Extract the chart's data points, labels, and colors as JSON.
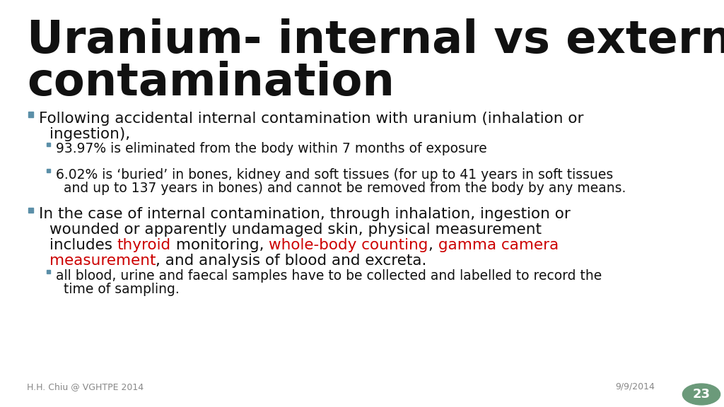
{
  "title_line1": "Uranium- internal vs external",
  "title_line2": "contamination",
  "title_color": "#111111",
  "title_fontsize": 46,
  "background_color": "#ffffff",
  "bullet_color": "#5b8fa8",
  "sub_bullet_color": "#5b8fa8",
  "text_color": "#111111",
  "red_color": "#cc0000",
  "footer_left": "H.H. Chiu @ VGHTPE 2014",
  "footer_right": "9/9/2014",
  "page_number": "23",
  "page_circle_color": "#6b9a7a",
  "body_fontsize": 15.5,
  "sub_fontsize": 13.5,
  "footer_fontsize": 9
}
